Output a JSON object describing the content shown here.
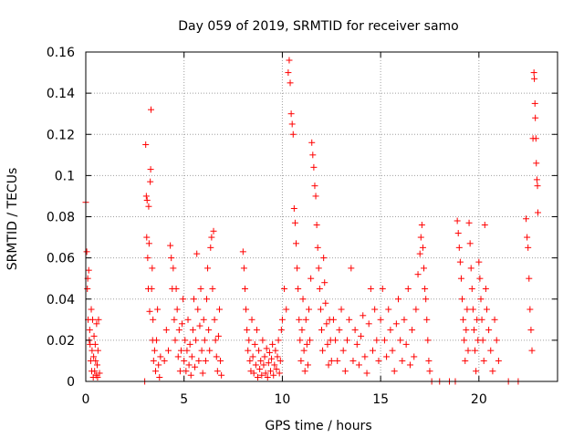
{
  "chart_data": {
    "type": "scatter",
    "title": "Day 059 of 2019, SRMTID for receiver samo",
    "xlabel": "GPS time / hours",
    "ylabel": "SRMTID / TECUs",
    "xlim": [
      0,
      24
    ],
    "ylim": [
      0,
      0.16
    ],
    "xticks": [
      0,
      5,
      10,
      15,
      20
    ],
    "xtick_labels": [
      "0",
      "5",
      "10",
      "15",
      "20"
    ],
    "yticks": [
      0,
      0.02,
      0.04,
      0.06,
      0.08,
      0.1,
      0.12,
      0.14,
      0.16
    ],
    "ytick_labels": [
      "0",
      "0.02",
      "0.04",
      "0.06",
      "0.08",
      "0.1",
      "0.12",
      "0.14",
      "0.16"
    ],
    "grid": true,
    "marker": "plus",
    "color": "#ff0000",
    "series": [
      {
        "name": "SRMTID",
        "points": [
          [
            0.0,
            0.087
          ],
          [
            0.05,
            0.063
          ],
          [
            0.08,
            0.045
          ],
          [
            0.1,
            0.05
          ],
          [
            0.12,
            0.03
          ],
          [
            0.15,
            0.054
          ],
          [
            0.18,
            0.02
          ],
          [
            0.2,
            0.025
          ],
          [
            0.22,
            0.018
          ],
          [
            0.25,
            0.01
          ],
          [
            0.28,
            0.035
          ],
          [
            0.3,
            0.005
          ],
          [
            0.32,
            0.015
          ],
          [
            0.35,
            0.03
          ],
          [
            0.38,
            0.002
          ],
          [
            0.4,
            0.012
          ],
          [
            0.42,
            0.022
          ],
          [
            0.45,
            0.005
          ],
          [
            0.48,
            0.018
          ],
          [
            0.5,
            0.01
          ],
          [
            0.52,
            0.003
          ],
          [
            0.55,
            0.028
          ],
          [
            0.58,
            0.008
          ],
          [
            0.6,
            0.002
          ],
          [
            0.62,
            0.015
          ],
          [
            0.65,
            0.03
          ],
          [
            0.7,
            0.004
          ],
          [
            3.0,
            0.0
          ],
          [
            3.05,
            0.115
          ],
          [
            3.08,
            0.09
          ],
          [
            3.1,
            0.07
          ],
          [
            3.12,
            0.088
          ],
          [
            3.15,
            0.06
          ],
          [
            3.18,
            0.045
          ],
          [
            3.2,
            0.085
          ],
          [
            3.22,
            0.067
          ],
          [
            3.25,
            0.034
          ],
          [
            3.28,
            0.097
          ],
          [
            3.3,
            0.103
          ],
          [
            3.32,
            0.132
          ],
          [
            3.35,
            0.045
          ],
          [
            3.38,
            0.055
          ],
          [
            3.4,
            0.02
          ],
          [
            3.42,
            0.03
          ],
          [
            3.45,
            0.01
          ],
          [
            3.5,
            0.015
          ],
          [
            3.55,
            0.005
          ],
          [
            3.6,
            0.02
          ],
          [
            3.65,
            0.035
          ],
          [
            3.7,
            0.008
          ],
          [
            3.75,
            0.002
          ],
          [
            3.8,
            0.012
          ],
          [
            4.0,
            0.01
          ],
          [
            4.1,
            0.025
          ],
          [
            4.2,
            0.015
          ],
          [
            4.3,
            0.066
          ],
          [
            4.35,
            0.06
          ],
          [
            4.4,
            0.045
          ],
          [
            4.45,
            0.055
          ],
          [
            4.5,
            0.03
          ],
          [
            4.55,
            0.02
          ],
          [
            4.6,
            0.045
          ],
          [
            4.65,
            0.035
          ],
          [
            4.7,
            0.012
          ],
          [
            4.75,
            0.025
          ],
          [
            4.8,
            0.005
          ],
          [
            4.85,
            0.015
          ],
          [
            4.9,
            0.028
          ],
          [
            4.95,
            0.04
          ],
          [
            5.0,
            0.01
          ],
          [
            5.05,
            0.02
          ],
          [
            5.1,
            0.005
          ],
          [
            5.15,
            0.015
          ],
          [
            5.2,
            0.03
          ],
          [
            5.25,
            0.008
          ],
          [
            5.3,
            0.018
          ],
          [
            5.35,
            0.003
          ],
          [
            5.4,
            0.012
          ],
          [
            5.45,
            0.025
          ],
          [
            5.5,
            0.04
          ],
          [
            5.55,
            0.007
          ],
          [
            5.6,
            0.02
          ],
          [
            5.65,
            0.062
          ],
          [
            5.7,
            0.035
          ],
          [
            5.75,
            0.01
          ],
          [
            5.8,
            0.027
          ],
          [
            5.85,
            0.045
          ],
          [
            5.9,
            0.015
          ],
          [
            5.95,
            0.004
          ],
          [
            6.0,
            0.03
          ],
          [
            6.05,
            0.02
          ],
          [
            6.1,
            0.01
          ],
          [
            6.15,
            0.04
          ],
          [
            6.2,
            0.055
          ],
          [
            6.25,
            0.025
          ],
          [
            6.3,
            0.015
          ],
          [
            6.35,
            0.065
          ],
          [
            6.4,
            0.07
          ],
          [
            6.45,
            0.045
          ],
          [
            6.5,
            0.073
          ],
          [
            6.55,
            0.03
          ],
          [
            6.6,
            0.02
          ],
          [
            6.65,
            0.012
          ],
          [
            6.7,
            0.005
          ],
          [
            6.75,
            0.022
          ],
          [
            6.8,
            0.035
          ],
          [
            6.85,
            0.01
          ],
          [
            6.9,
            0.003
          ],
          [
            8.0,
            0.063
          ],
          [
            8.05,
            0.055
          ],
          [
            8.1,
            0.045
          ],
          [
            8.15,
            0.035
          ],
          [
            8.2,
            0.025
          ],
          [
            8.25,
            0.015
          ],
          [
            8.3,
            0.02
          ],
          [
            8.35,
            0.01
          ],
          [
            8.4,
            0.005
          ],
          [
            8.45,
            0.03
          ],
          [
            8.5,
            0.012
          ],
          [
            8.55,
            0.004
          ],
          [
            8.6,
            0.018
          ],
          [
            8.65,
            0.008
          ],
          [
            8.7,
            0.025
          ],
          [
            8.75,
            0.002
          ],
          [
            8.8,
            0.015
          ],
          [
            8.85,
            0.006
          ],
          [
            8.9,
            0.01
          ],
          [
            8.95,
            0.003
          ],
          [
            9.0,
            0.02
          ],
          [
            9.05,
            0.008
          ],
          [
            9.1,
            0.012
          ],
          [
            9.15,
            0.004
          ],
          [
            9.2,
            0.016
          ],
          [
            9.25,
            0.002
          ],
          [
            9.3,
            0.009
          ],
          [
            9.35,
            0.014
          ],
          [
            9.4,
            0.005
          ],
          [
            9.45,
            0.011
          ],
          [
            9.5,
            0.018
          ],
          [
            9.55,
            0.003
          ],
          [
            9.6,
            0.008
          ],
          [
            9.65,
            0.015
          ],
          [
            9.7,
            0.006
          ],
          [
            9.75,
            0.012
          ],
          [
            9.8,
            0.02
          ],
          [
            9.85,
            0.004
          ],
          [
            9.9,
            0.01
          ],
          [
            9.95,
            0.025
          ],
          [
            10.0,
            0.03
          ],
          [
            10.1,
            0.045
          ],
          [
            10.2,
            0.035
          ],
          [
            10.3,
            0.15
          ],
          [
            10.35,
            0.156
          ],
          [
            10.4,
            0.145
          ],
          [
            10.45,
            0.13
          ],
          [
            10.5,
            0.125
          ],
          [
            10.55,
            0.12
          ],
          [
            10.6,
            0.084
          ],
          [
            10.65,
            0.077
          ],
          [
            10.7,
            0.067
          ],
          [
            10.75,
            0.055
          ],
          [
            10.8,
            0.045
          ],
          [
            10.85,
            0.03
          ],
          [
            10.9,
            0.02
          ],
          [
            10.95,
            0.01
          ],
          [
            11.0,
            0.025
          ],
          [
            11.05,
            0.04
          ],
          [
            11.1,
            0.015
          ],
          [
            11.15,
            0.005
          ],
          [
            11.2,
            0.03
          ],
          [
            11.25,
            0.018
          ],
          [
            11.3,
            0.008
          ],
          [
            11.35,
            0.035
          ],
          [
            11.4,
            0.02
          ],
          [
            11.45,
            0.05
          ],
          [
            11.5,
            0.116
          ],
          [
            11.55,
            0.11
          ],
          [
            11.6,
            0.104
          ],
          [
            11.65,
            0.095
          ],
          [
            11.7,
            0.09
          ],
          [
            11.75,
            0.076
          ],
          [
            11.8,
            0.065
          ],
          [
            11.85,
            0.055
          ],
          [
            11.9,
            0.045
          ],
          [
            11.95,
            0.035
          ],
          [
            12.0,
            0.025
          ],
          [
            12.05,
            0.015
          ],
          [
            12.1,
            0.06
          ],
          [
            12.15,
            0.048
          ],
          [
            12.2,
            0.038
          ],
          [
            12.25,
            0.028
          ],
          [
            12.3,
            0.018
          ],
          [
            12.35,
            0.008
          ],
          [
            12.4,
            0.03
          ],
          [
            12.45,
            0.02
          ],
          [
            12.5,
            0.01
          ],
          [
            12.6,
            0.03
          ],
          [
            12.7,
            0.02
          ],
          [
            12.8,
            0.01
          ],
          [
            12.9,
            0.025
          ],
          [
            13.0,
            0.035
          ],
          [
            13.1,
            0.015
          ],
          [
            13.2,
            0.005
          ],
          [
            13.3,
            0.02
          ],
          [
            13.4,
            0.03
          ],
          [
            13.5,
            0.055
          ],
          [
            13.6,
            0.01
          ],
          [
            13.7,
            0.025
          ],
          [
            13.8,
            0.018
          ],
          [
            13.9,
            0.008
          ],
          [
            14.0,
            0.022
          ],
          [
            14.1,
            0.032
          ],
          [
            14.2,
            0.012
          ],
          [
            14.3,
            0.004
          ],
          [
            14.4,
            0.028
          ],
          [
            14.5,
            0.045
          ],
          [
            14.6,
            0.015
          ],
          [
            14.7,
            0.035
          ],
          [
            14.8,
            0.02
          ],
          [
            14.9,
            0.01
          ],
          [
            15.0,
            0.03
          ],
          [
            15.1,
            0.045
          ],
          [
            15.2,
            0.02
          ],
          [
            15.3,
            0.012
          ],
          [
            15.4,
            0.035
          ],
          [
            15.5,
            0.025
          ],
          [
            15.6,
            0.015
          ],
          [
            15.7,
            0.005
          ],
          [
            15.8,
            0.028
          ],
          [
            15.9,
            0.04
          ],
          [
            16.0,
            0.02
          ],
          [
            16.1,
            0.01
          ],
          [
            16.2,
            0.03
          ],
          [
            16.3,
            0.018
          ],
          [
            16.4,
            0.045
          ],
          [
            16.5,
            0.008
          ],
          [
            16.6,
            0.025
          ],
          [
            16.7,
            0.012
          ],
          [
            16.8,
            0.035
          ],
          [
            16.9,
            0.052
          ],
          [
            17.0,
            0.062
          ],
          [
            17.05,
            0.07
          ],
          [
            17.1,
            0.076
          ],
          [
            17.15,
            0.065
          ],
          [
            17.2,
            0.055
          ],
          [
            17.25,
            0.045
          ],
          [
            17.3,
            0.04
          ],
          [
            17.35,
            0.03
          ],
          [
            17.4,
            0.02
          ],
          [
            17.45,
            0.01
          ],
          [
            17.5,
            0.005
          ],
          [
            17.6,
            0.0
          ],
          [
            18.0,
            0.0
          ],
          [
            18.5,
            0.0
          ],
          [
            18.8,
            0.0
          ],
          [
            18.9,
            0.078
          ],
          [
            18.95,
            0.072
          ],
          [
            19.0,
            0.065
          ],
          [
            19.05,
            0.058
          ],
          [
            19.1,
            0.05
          ],
          [
            19.15,
            0.04
          ],
          [
            19.2,
            0.03
          ],
          [
            19.25,
            0.02
          ],
          [
            19.3,
            0.01
          ],
          [
            19.35,
            0.025
          ],
          [
            19.4,
            0.035
          ],
          [
            19.45,
            0.015
          ],
          [
            19.5,
            0.077
          ],
          [
            19.55,
            0.067
          ],
          [
            19.6,
            0.055
          ],
          [
            19.65,
            0.045
          ],
          [
            19.7,
            0.035
          ],
          [
            19.75,
            0.025
          ],
          [
            19.8,
            0.015
          ],
          [
            19.85,
            0.005
          ],
          [
            19.9,
            0.03
          ],
          [
            19.95,
            0.02
          ],
          [
            20.0,
            0.058
          ],
          [
            20.05,
            0.05
          ],
          [
            20.1,
            0.04
          ],
          [
            20.15,
            0.03
          ],
          [
            20.2,
            0.02
          ],
          [
            20.25,
            0.01
          ],
          [
            20.3,
            0.076
          ],
          [
            20.35,
            0.045
          ],
          [
            20.4,
            0.035
          ],
          [
            20.5,
            0.025
          ],
          [
            20.6,
            0.015
          ],
          [
            20.7,
            0.005
          ],
          [
            20.8,
            0.03
          ],
          [
            20.9,
            0.02
          ],
          [
            21.0,
            0.01
          ],
          [
            21.5,
            0.0
          ],
          [
            22.0,
            0.0
          ],
          [
            22.4,
            0.079
          ],
          [
            22.45,
            0.07
          ],
          [
            22.5,
            0.065
          ],
          [
            22.55,
            0.05
          ],
          [
            22.6,
            0.035
          ],
          [
            22.65,
            0.025
          ],
          [
            22.7,
            0.015
          ],
          [
            22.75,
            0.118
          ],
          [
            22.8,
            0.15
          ],
          [
            22.82,
            0.147
          ],
          [
            22.85,
            0.135
          ],
          [
            22.87,
            0.128
          ],
          [
            22.9,
            0.118
          ],
          [
            22.92,
            0.106
          ],
          [
            22.95,
            0.098
          ],
          [
            22.98,
            0.095
          ],
          [
            23.0,
            0.082
          ]
        ]
      }
    ]
  }
}
